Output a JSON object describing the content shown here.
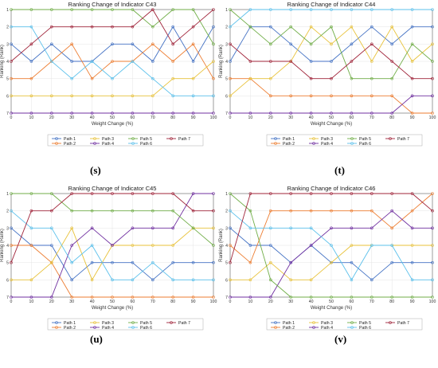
{
  "chart_data": [
    {
      "type": "line",
      "panel": "s",
      "title": "Ranking Change of Indicator C43",
      "xlabel": "Weight Change (%)",
      "ylabel": "Ranking (Rank)",
      "x": [
        0,
        10,
        20,
        30,
        40,
        50,
        60,
        70,
        80,
        90,
        100
      ],
      "xlim": [
        0,
        100
      ],
      "ylim": [
        1,
        7
      ],
      "y_inverted": true,
      "yticks": [
        1,
        2,
        3,
        4,
        5,
        6,
        7
      ],
      "xticks": [
        0,
        10,
        20,
        30,
        40,
        50,
        60,
        70,
        80,
        90,
        100
      ],
      "legend_position": "bottom-center",
      "series": [
        {
          "name": "Path 1",
          "values": [
            3,
            4,
            3,
            4,
            4,
            3,
            3,
            4,
            2,
            4,
            2
          ]
        },
        {
          "name": "Path 2",
          "values": [
            5,
            5,
            4,
            3,
            5,
            4,
            4,
            3,
            4,
            3,
            5
          ]
        },
        {
          "name": "Path 3",
          "values": [
            6,
            6,
            6,
            6,
            6,
            6,
            6,
            6,
            5,
            5,
            4
          ]
        },
        {
          "name": "Path 4",
          "values": [
            7,
            7,
            7,
            7,
            7,
            7,
            7,
            7,
            7,
            7,
            7
          ]
        },
        {
          "name": "Path 5",
          "values": [
            1,
            1,
            1,
            1,
            1,
            1,
            1,
            2,
            1,
            1,
            3
          ]
        },
        {
          "name": "Path 6",
          "values": [
            2,
            2,
            4,
            5,
            4,
            5,
            4,
            5,
            6,
            6,
            6
          ]
        },
        {
          "name": "Path 7",
          "values": [
            4,
            3,
            2,
            2,
            2,
            2,
            2,
            1,
            3,
            2,
            1
          ]
        }
      ],
      "colors": [
        "#4472c4",
        "#ed7d31",
        "#e8c23a",
        "#7030a0",
        "#70ad47",
        "#5bc0eb",
        "#a0243a"
      ]
    },
    {
      "type": "line",
      "panel": "t",
      "title": "Ranking Change of Indicator C44",
      "xlabel": "Weight Change (%)",
      "ylabel": "Ranking (Rank)",
      "x": [
        0,
        10,
        20,
        30,
        40,
        50,
        60,
        70,
        80,
        90,
        100
      ],
      "xlim": [
        0,
        100
      ],
      "ylim": [
        1,
        7
      ],
      "y_inverted": true,
      "yticks": [
        1,
        2,
        3,
        4,
        5,
        6,
        7
      ],
      "xticks": [
        0,
        10,
        20,
        30,
        40,
        50,
        60,
        70,
        80,
        90,
        100
      ],
      "legend_position": "bottom-center",
      "series": [
        {
          "name": "Path 1",
          "values": [
            4,
            2,
            2,
            3,
            4,
            4,
            3,
            2,
            3,
            2,
            2
          ]
        },
        {
          "name": "Path 2",
          "values": [
            5,
            5,
            6,
            6,
            6,
            6,
            6,
            6,
            6,
            7,
            7
          ]
        },
        {
          "name": "Path 3",
          "values": [
            6,
            5,
            5,
            4,
            2,
            3,
            2,
            4,
            2,
            4,
            3
          ]
        },
        {
          "name": "Path 4",
          "values": [
            7,
            7,
            7,
            7,
            7,
            7,
            7,
            7,
            7,
            6,
            6
          ]
        },
        {
          "name": "Path 5",
          "values": [
            1,
            2,
            3,
            2,
            3,
            2,
            5,
            5,
            5,
            3,
            4
          ]
        },
        {
          "name": "Path 6",
          "values": [
            2,
            1,
            1,
            1,
            1,
            1,
            1,
            1,
            1,
            1,
            1
          ]
        },
        {
          "name": "Path 7",
          "values": [
            3,
            4,
            4,
            4,
            5,
            5,
            4,
            3,
            4,
            5,
            5
          ]
        }
      ],
      "colors": [
        "#4472c4",
        "#ed7d31",
        "#e8c23a",
        "#7030a0",
        "#70ad47",
        "#5bc0eb",
        "#a0243a"
      ]
    },
    {
      "type": "line",
      "panel": "u",
      "title": "Ranking Change of Indicator C45",
      "xlabel": "Weight Change (%)",
      "ylabel": "Ranking (Rank)",
      "x": [
        0,
        10,
        20,
        30,
        40,
        50,
        60,
        70,
        80,
        90,
        100
      ],
      "xlim": [
        0,
        100
      ],
      "ylim": [
        1,
        7
      ],
      "y_inverted": true,
      "yticks": [
        1,
        2,
        3,
        4,
        5,
        6,
        7
      ],
      "xticks": [
        0,
        10,
        20,
        30,
        40,
        50,
        60,
        70,
        80,
        90,
        100
      ],
      "legend_position": "bottom-center",
      "series": [
        {
          "name": "Path 1",
          "values": [
            3,
            4,
            4,
            6,
            5,
            5,
            5,
            6,
            5,
            5,
            5
          ]
        },
        {
          "name": "Path 2",
          "values": [
            4,
            4,
            5,
            7,
            7,
            7,
            7,
            7,
            7,
            7,
            7
          ]
        },
        {
          "name": "Path 3",
          "values": [
            6,
            6,
            5,
            3,
            6,
            4,
            4,
            4,
            4,
            3,
            3
          ]
        },
        {
          "name": "Path 4",
          "values": [
            7,
            7,
            7,
            4,
            3,
            4,
            3,
            3,
            3,
            1,
            1
          ]
        },
        {
          "name": "Path 5",
          "values": [
            1,
            1,
            1,
            2,
            2,
            2,
            2,
            2,
            2,
            3,
            4
          ]
        },
        {
          "name": "Path 6",
          "values": [
            2,
            3,
            3,
            5,
            4,
            6,
            6,
            5,
            6,
            6,
            6
          ]
        },
        {
          "name": "Path 7",
          "values": [
            5,
            2,
            2,
            1,
            1,
            1,
            1,
            1,
            1,
            2,
            2
          ]
        }
      ],
      "colors": [
        "#4472c4",
        "#ed7d31",
        "#e8c23a",
        "#7030a0",
        "#70ad47",
        "#5bc0eb",
        "#a0243a"
      ]
    },
    {
      "type": "line",
      "panel": "v",
      "title": "Ranking Change of Indicator C46",
      "xlabel": "Weight Change (%)",
      "ylabel": "Ranking (Rank)",
      "x": [
        0,
        10,
        20,
        30,
        40,
        50,
        60,
        70,
        80,
        90,
        100
      ],
      "xlim": [
        0,
        100
      ],
      "ylim": [
        1,
        7
      ],
      "y_inverted": true,
      "yticks": [
        1,
        2,
        3,
        4,
        5,
        6,
        7
      ],
      "xticks": [
        0,
        10,
        20,
        30,
        40,
        50,
        60,
        70,
        80,
        90,
        100
      ],
      "legend_position": "bottom-center",
      "series": [
        {
          "name": "Path 1",
          "values": [
            3,
            4,
            4,
            5,
            4,
            5,
            5,
            6,
            5,
            5,
            5
          ]
        },
        {
          "name": "Path 2",
          "values": [
            4,
            5,
            2,
            2,
            2,
            2,
            2,
            2,
            3,
            2,
            1
          ]
        },
        {
          "name": "Path 3",
          "values": [
            6,
            6,
            5,
            6,
            6,
            5,
            4,
            4,
            4,
            4,
            4
          ]
        },
        {
          "name": "Path 4",
          "values": [
            7,
            7,
            7,
            5,
            4,
            3,
            3,
            3,
            2,
            3,
            3
          ]
        },
        {
          "name": "Path 5",
          "values": [
            1,
            2,
            6,
            7,
            7,
            7,
            7,
            7,
            7,
            7,
            7
          ]
        },
        {
          "name": "Path 6",
          "values": [
            2,
            3,
            3,
            3,
            3,
            4,
            6,
            4,
            4,
            6,
            6
          ]
        },
        {
          "name": "Path 7",
          "values": [
            5,
            1,
            1,
            1,
            1,
            1,
            1,
            1,
            1,
            1,
            2
          ]
        }
      ],
      "colors": [
        "#4472c4",
        "#ed7d31",
        "#e8c23a",
        "#7030a0",
        "#70ad47",
        "#5bc0eb",
        "#a0243a"
      ]
    }
  ],
  "panel_captions": [
    "(s)",
    "(t)",
    "(u)",
    "(v)"
  ],
  "tick_labels_y": [
    "1",
    "2",
    "3",
    "4",
    "5",
    "6",
    "7"
  ]
}
